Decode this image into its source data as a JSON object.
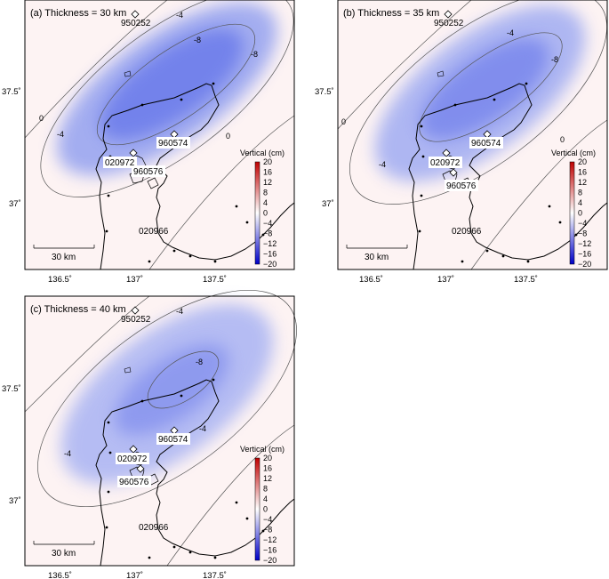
{
  "panels": [
    {
      "title": "(a) Thickness = 30 km"
    },
    {
      "title": "(b) Thickness = 35 km"
    },
    {
      "title": "(c) Thickness = 40 km"
    }
  ],
  "stations": [
    "950252",
    "960574",
    "020972",
    "960576",
    "020966"
  ],
  "x_ticks": [
    "136.5˚",
    "137˚",
    "137.5˚"
  ],
  "y_ticks": [
    "37.5˚",
    "37˚"
  ],
  "scale_bar": "30 km",
  "colorbar": {
    "title": "Vertical (cm)",
    "labels": [
      "20",
      "16",
      "12",
      "8",
      "4",
      "0",
      "−4",
      "−8",
      "−12",
      "−16",
      "−20"
    ]
  },
  "contour_labels": {
    "zero": "0",
    "minus4": "-4",
    "minus8": "-8"
  }
}
